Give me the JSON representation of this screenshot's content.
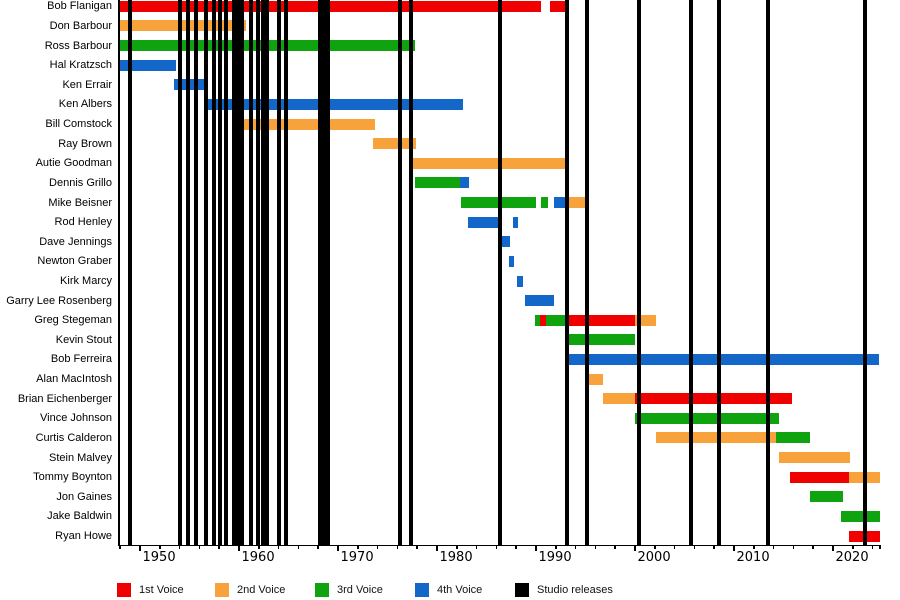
{
  "chart_data": {
    "type": "timeline-gantt",
    "description": "Band member tenures by voice part, with studio release markers",
    "x_axis": {
      "start": 1948,
      "end": 2024.75,
      "major_ticks": [
        1950,
        1960,
        1970,
        1980,
        1990,
        2000,
        2010,
        2020
      ],
      "tick_labels": [
        "1950",
        "1960",
        "1970",
        "1980",
        "1990",
        "2000",
        "2010",
        "2020"
      ],
      "minor_tick_step": 2
    },
    "colors": {
      "1st": "#f10000",
      "2nd": "#f7a23a",
      "3rd": "#10a310",
      "4th": "#1267c8",
      "studio": "#000000"
    },
    "legend": [
      {
        "label": "1st Voice",
        "color": "#f10000"
      },
      {
        "label": "2nd Voice",
        "color": "#f7a23a"
      },
      {
        "label": "3rd Voice",
        "color": "#10a310"
      },
      {
        "label": "4th Voice",
        "color": "#1267c8"
      },
      {
        "label": "Studio releases",
        "color": "#000000"
      }
    ],
    "members": [
      {
        "name": "Bob Flanigan",
        "segments": [
          {
            "from": 1948,
            "to": 1990.5,
            "voice": "1st"
          },
          {
            "from": 1991.4,
            "to": 1993.1,
            "voice": "1st"
          }
        ]
      },
      {
        "name": "Don Barbour",
        "segments": [
          {
            "from": 1948,
            "to": 1960.7,
            "voice": "2nd"
          }
        ]
      },
      {
        "name": "Ross Barbour",
        "segments": [
          {
            "from": 1948,
            "to": 1977.8,
            "voice": "3rd"
          }
        ]
      },
      {
        "name": "Hal Kratzsch",
        "segments": [
          {
            "from": 1948,
            "to": 1953.6,
            "voice": "4th"
          }
        ]
      },
      {
        "name": "Ken Errair",
        "segments": [
          {
            "from": 1953.4,
            "to": 1956.5,
            "voice": "4th"
          }
        ]
      },
      {
        "name": "Ken Albers",
        "segments": [
          {
            "from": 1956.5,
            "to": 1982.6,
            "voice": "4th"
          }
        ]
      },
      {
        "name": "Bill Comstock",
        "segments": [
          {
            "from": 1960.5,
            "to": 1973.7,
            "voice": "2nd"
          }
        ]
      },
      {
        "name": "Ray Brown",
        "segments": [
          {
            "from": 1973.5,
            "to": 1977.9,
            "voice": "2nd"
          }
        ]
      },
      {
        "name": "Autie Goodman",
        "segments": [
          {
            "from": 1977.6,
            "to": 1993.1,
            "voice": "2nd"
          }
        ]
      },
      {
        "name": "Dennis Grillo",
        "segments": [
          {
            "from": 1977.8,
            "to": 1982.3,
            "voice": "3rd"
          },
          {
            "from": 1982.3,
            "to": 1983.2,
            "voice": "4th"
          }
        ]
      },
      {
        "name": "Mike Beisner",
        "segments": [
          {
            "from": 1982.4,
            "to": 1990.0,
            "voice": "3rd"
          },
          {
            "from": 1990.5,
            "to": 1991.2,
            "voice": "3rd"
          },
          {
            "from": 1991.8,
            "to": 1992.9,
            "voice": "4th"
          },
          {
            "from": 1992.9,
            "to": 1995.0,
            "voice": "2nd"
          }
        ]
      },
      {
        "name": "Rod Henley",
        "segments": [
          {
            "from": 1983.1,
            "to": 1986.6,
            "voice": "4th"
          },
          {
            "from": 1987.7,
            "to": 1988.2,
            "voice": "4th"
          }
        ]
      },
      {
        "name": "Dave Jennings",
        "segments": [
          {
            "from": 1986.6,
            "to": 1987.4,
            "voice": "4th"
          }
        ]
      },
      {
        "name": "Newton Graber",
        "segments": [
          {
            "from": 1987.3,
            "to": 1987.8,
            "voice": "4th"
          }
        ]
      },
      {
        "name": "Kirk Marcy",
        "segments": [
          {
            "from": 1988.1,
            "to": 1988.7,
            "voice": "4th"
          }
        ]
      },
      {
        "name": "Garry Lee Rosenberg",
        "segments": [
          {
            "from": 1988.9,
            "to": 1991.8,
            "voice": "4th"
          }
        ]
      },
      {
        "name": "Greg Stegeman",
        "segments": [
          {
            "from": 1989.9,
            "to": 1990.4,
            "voice": "3rd"
          },
          {
            "from": 1990.4,
            "to": 1991.0,
            "voice": "1st"
          },
          {
            "from": 1991.0,
            "to": 1992.9,
            "voice": "3rd"
          },
          {
            "from": 1992.9,
            "to": 2000.0,
            "voice": "1st"
          },
          {
            "from": 2000.0,
            "to": 2002.1,
            "voice": "2nd"
          }
        ]
      },
      {
        "name": "Kevin Stout",
        "segments": [
          {
            "from": 1993.0,
            "to": 2000.0,
            "voice": "3rd"
          }
        ]
      },
      {
        "name": "Bob Ferreira",
        "segments": [
          {
            "from": 1993.0,
            "to": 2024.6,
            "voice": "4th"
          }
        ]
      },
      {
        "name": "Alan MacIntosh",
        "segments": [
          {
            "from": 1995.2,
            "to": 1996.8,
            "voice": "2nd"
          }
        ]
      },
      {
        "name": "Brian Eichenberger",
        "segments": [
          {
            "from": 1996.8,
            "to": 2000.0,
            "voice": "2nd"
          },
          {
            "from": 2000.0,
            "to": 2015.9,
            "voice": "1st"
          }
        ]
      },
      {
        "name": "Vince Johnson",
        "segments": [
          {
            "from": 2000.0,
            "to": 2014.5,
            "voice": "3rd"
          }
        ]
      },
      {
        "name": "Curtis Calderon",
        "segments": [
          {
            "from": 2002.1,
            "to": 2014.2,
            "voice": "2nd"
          },
          {
            "from": 2014.2,
            "to": 2017.7,
            "voice": "3rd"
          }
        ]
      },
      {
        "name": "Stein Malvey",
        "segments": [
          {
            "from": 2014.5,
            "to": 2021.7,
            "voice": "2nd"
          }
        ]
      },
      {
        "name": "Tommy Boynton",
        "segments": [
          {
            "from": 2015.7,
            "to": 2021.6,
            "voice": "1st"
          },
          {
            "from": 2021.6,
            "to": 2024.7,
            "voice": "2nd"
          }
        ]
      },
      {
        "name": "Jon Gaines",
        "segments": [
          {
            "from": 2017.7,
            "to": 2021.0,
            "voice": "3rd"
          }
        ]
      },
      {
        "name": "Jake Baldwin",
        "segments": [
          {
            "from": 2020.8,
            "to": 2024.7,
            "voice": "3rd"
          }
        ]
      },
      {
        "name": "Ryan Howe",
        "segments": [
          {
            "from": 2021.6,
            "to": 2024.7,
            "voice": "1st"
          }
        ]
      }
    ],
    "studio_release_years": [
      1949.0,
      1954.0,
      1954.8,
      1955.7,
      1956.7,
      1957.5,
      1958.1,
      1958.7,
      1959.5,
      1959.9,
      1960.3,
      1961.2,
      1961.9,
      1962.4,
      1962.8,
      1964.0,
      1964.7,
      1968.2,
      1968.6,
      1969.0,
      1976.3,
      1977.4,
      1986.4,
      1993.1,
      1995.2,
      2000.4,
      2005.7,
      2008.5,
      2013.4,
      2023.2
    ]
  }
}
